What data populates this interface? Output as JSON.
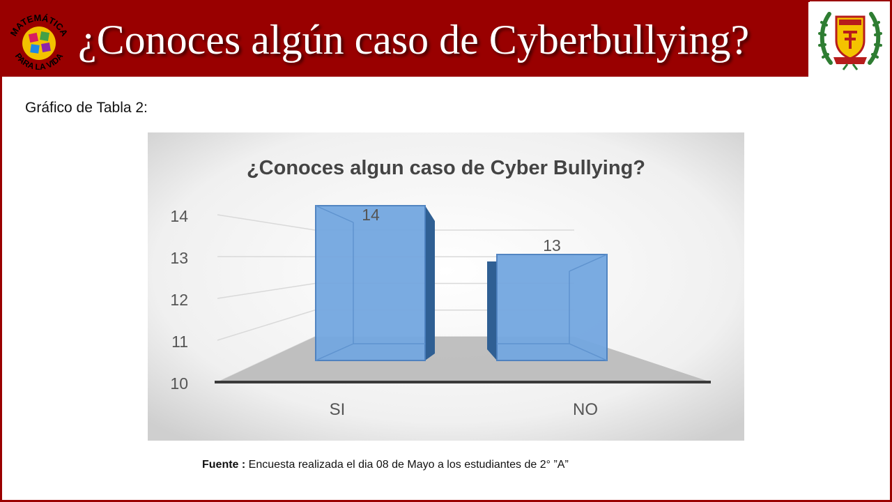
{
  "header": {
    "title": "¿Conoces algún caso de Cyberbullying?",
    "left_logo_top_text": "MATEMÁTICA",
    "left_logo_bottom_text": "PARA LA VIDA",
    "left_logo_icon": "math-badge-logo",
    "right_logo_icon": "school-crest-logo",
    "bar_color": "#990000"
  },
  "subtitle": "Gráfico de  Tabla 2:",
  "source": {
    "label": "Fuente :",
    "text": " Encuesta realizada el dia 08 de Mayo a los estudiantes de 2° ”A”"
  },
  "chart_data": {
    "type": "bar",
    "title": "¿Conoces algun caso de Cyber Bullying?",
    "categories": [
      "SI",
      "NO"
    ],
    "values": [
      14,
      13
    ],
    "data_labels": [
      "14",
      "13"
    ],
    "yticks": [
      "10",
      "11",
      "12",
      "13",
      "14"
    ],
    "ylim": [
      10,
      14
    ],
    "grid": true,
    "style": "3d",
    "bar_color": "#6fa8dc",
    "legend": "none"
  }
}
